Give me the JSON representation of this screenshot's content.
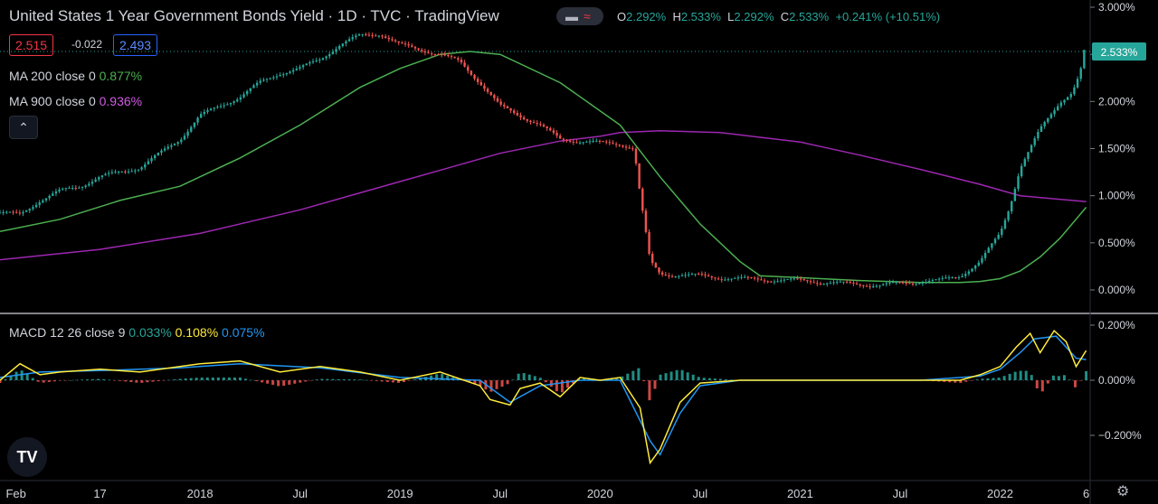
{
  "header": {
    "title": "United States 1 Year Government Bonds Yield · 1D · TVC · TradingView",
    "ohlc": [
      {
        "k": "O",
        "v": "2.292%"
      },
      {
        "k": "H",
        "v": "2.533%"
      },
      {
        "k": "L",
        "v": "2.292%"
      },
      {
        "k": "C",
        "v": "2.533%"
      }
    ],
    "change": "+0.241% (+10.51%)",
    "sell": "2.515",
    "spread": "-0.022",
    "buy": "2.493"
  },
  "indicators": {
    "ma200_label": "MA 200 close 0",
    "ma200_value": "0.877%",
    "ma900_label": "MA 900 close 0",
    "ma900_value": "0.936%",
    "macd_label": "MACD 12 26 close 9",
    "macd_hist": "0.033%",
    "macd_macd": "0.108%",
    "macd_signal": "0.075%",
    "collapse_icon": "chevron-up-icon"
  },
  "colors": {
    "background": "#000000",
    "up": "#26a69a",
    "down": "#ef5350",
    "ma200": "#4caf50",
    "ma900": "#9c27b0",
    "macd": "#ffeb3b",
    "signal": "#2196f3",
    "last_price_bg": "#26a69a"
  },
  "chart_data": [
    {
      "type": "line",
      "title": "United States 1 Year Government Bonds Yield",
      "ylim": [
        -0.15,
        3.0
      ],
      "y_ticks": [
        "3.000%",
        "2.500%",
        "2.000%",
        "1.500%",
        "1.000%",
        "0.500%",
        "0.000%"
      ],
      "y_tick_values": [
        3.0,
        2.5,
        2.0,
        1.5,
        1.0,
        0.5,
        0.0
      ],
      "x_ticks": [
        "Feb",
        "17",
        "2018",
        "Jul",
        "2019",
        "Jul",
        "2020",
        "Jul",
        "2021",
        "Jul",
        "2022",
        "6"
      ],
      "x_tick_dates": [
        2017.08,
        2017.5,
        2018.0,
        2018.5,
        2019.0,
        2019.5,
        2020.0,
        2020.5,
        2021.0,
        2021.5,
        2022.0,
        2022.43
      ],
      "x_range": [
        2017.0,
        2022.45
      ],
      "last_price_label": "2.533%",
      "series": [
        {
          "name": "Price",
          "x": [
            2017.0,
            2017.1,
            2017.2,
            2017.3,
            2017.4,
            2017.5,
            2017.6,
            2017.7,
            2017.8,
            2017.9,
            2018.0,
            2018.1,
            2018.2,
            2018.3,
            2018.4,
            2018.5,
            2018.6,
            2018.7,
            2018.8,
            2018.9,
            2019.0,
            2019.1,
            2019.2,
            2019.3,
            2019.4,
            2019.5,
            2019.6,
            2019.7,
            2019.8,
            2019.9,
            2020.0,
            2020.1,
            2020.17,
            2020.2,
            2020.25,
            2020.3,
            2020.4,
            2020.5,
            2020.6,
            2020.8,
            2021.0,
            2021.2,
            2021.4,
            2021.5,
            2021.6,
            2021.7,
            2021.8,
            2021.9,
            2022.0,
            2022.05,
            2022.1,
            2022.2,
            2022.3,
            2022.36,
            2022.4,
            2022.42
          ],
          "values": [
            0.82,
            0.8,
            0.95,
            1.05,
            1.1,
            1.2,
            1.25,
            1.3,
            1.45,
            1.6,
            1.85,
            1.95,
            2.05,
            2.2,
            2.3,
            2.35,
            2.45,
            2.6,
            2.7,
            2.72,
            2.6,
            2.55,
            2.5,
            2.42,
            2.2,
            1.95,
            1.85,
            1.75,
            1.6,
            1.58,
            1.56,
            1.55,
            1.5,
            1.0,
            0.3,
            0.17,
            0.16,
            0.15,
            0.13,
            0.11,
            0.1,
            0.07,
            0.05,
            0.07,
            0.09,
            0.1,
            0.15,
            0.3,
            0.6,
            0.9,
            1.3,
            1.7,
            2.0,
            2.1,
            2.3,
            2.53
          ]
        },
        {
          "name": "MA 200",
          "x": [
            2017.0,
            2017.3,
            2017.6,
            2017.9,
            2018.2,
            2018.5,
            2018.8,
            2019.0,
            2019.2,
            2019.35,
            2019.5,
            2019.8,
            2020.1,
            2020.3,
            2020.5,
            2020.7,
            2020.8,
            2021.0,
            2021.3,
            2021.6,
            2021.8,
            2021.9,
            2022.0,
            2022.1,
            2022.2,
            2022.3,
            2022.43
          ],
          "values": [
            0.62,
            0.75,
            0.95,
            1.1,
            1.4,
            1.75,
            2.15,
            2.35,
            2.5,
            2.53,
            2.5,
            2.2,
            1.75,
            1.2,
            0.7,
            0.3,
            0.15,
            0.13,
            0.1,
            0.08,
            0.08,
            0.09,
            0.12,
            0.2,
            0.35,
            0.55,
            0.877
          ]
        },
        {
          "name": "MA 900",
          "x": [
            2017.0,
            2017.5,
            2018.0,
            2018.5,
            2019.0,
            2019.5,
            2019.8,
            2020.0,
            2020.1,
            2020.3,
            2020.6,
            2021.0,
            2021.3,
            2021.6,
            2021.9,
            2022.1,
            2022.43
          ],
          "values": [
            0.32,
            0.43,
            0.6,
            0.85,
            1.15,
            1.45,
            1.58,
            1.63,
            1.67,
            1.69,
            1.67,
            1.57,
            1.43,
            1.28,
            1.12,
            1.0,
            0.936
          ]
        }
      ]
    },
    {
      "type": "line",
      "title": "MACD 12 26 close 9",
      "ylim": [
        -0.3,
        0.22
      ],
      "y_ticks": [
        "0.200%",
        "0.000%",
        "−0.200%"
      ],
      "y_tick_values": [
        0.2,
        0.0,
        -0.2
      ],
      "series": [
        {
          "name": "MACD",
          "x": [
            2017.0,
            2017.1,
            2017.2,
            2017.3,
            2017.5,
            2017.7,
            2017.9,
            2018.0,
            2018.2,
            2018.4,
            2018.6,
            2018.8,
            2019.0,
            2019.2,
            2019.4,
            2019.45,
            2019.55,
            2019.6,
            2019.7,
            2019.8,
            2019.9,
            2020.0,
            2020.1,
            2020.2,
            2020.25,
            2020.3,
            2020.4,
            2020.5,
            2020.7,
            2021.0,
            2021.3,
            2021.6,
            2021.8,
            2021.9,
            2022.0,
            2022.08,
            2022.15,
            2022.2,
            2022.27,
            2022.33,
            2022.38,
            2022.43
          ],
          "values": [
            0.0,
            0.06,
            0.02,
            0.03,
            0.04,
            0.03,
            0.05,
            0.06,
            0.07,
            0.03,
            0.05,
            0.03,
            0.0,
            0.03,
            -0.02,
            -0.07,
            -0.09,
            -0.03,
            -0.01,
            -0.06,
            0.01,
            0.0,
            0.01,
            -0.1,
            -0.3,
            -0.25,
            -0.08,
            -0.01,
            0.0,
            0.0,
            0.0,
            0.0,
            0.0,
            0.02,
            0.05,
            0.12,
            0.17,
            0.1,
            0.18,
            0.14,
            0.05,
            0.108
          ]
        },
        {
          "name": "Signal",
          "x": [
            2017.0,
            2017.2,
            2017.5,
            2017.9,
            2018.2,
            2018.6,
            2019.0,
            2019.4,
            2019.55,
            2019.7,
            2019.9,
            2020.1,
            2020.25,
            2020.3,
            2020.4,
            2020.5,
            2020.7,
            2021.0,
            2021.6,
            2021.9,
            2022.0,
            2022.1,
            2022.17,
            2022.28,
            2022.38,
            2022.43
          ],
          "values": [
            0.01,
            0.03,
            0.035,
            0.045,
            0.06,
            0.045,
            0.01,
            0.0,
            -0.08,
            -0.02,
            0.0,
            0.0,
            -0.22,
            -0.27,
            -0.12,
            -0.02,
            0.0,
            0.0,
            0.0,
            0.015,
            0.04,
            0.1,
            0.15,
            0.16,
            0.08,
            0.075
          ]
        }
      ]
    }
  ]
}
